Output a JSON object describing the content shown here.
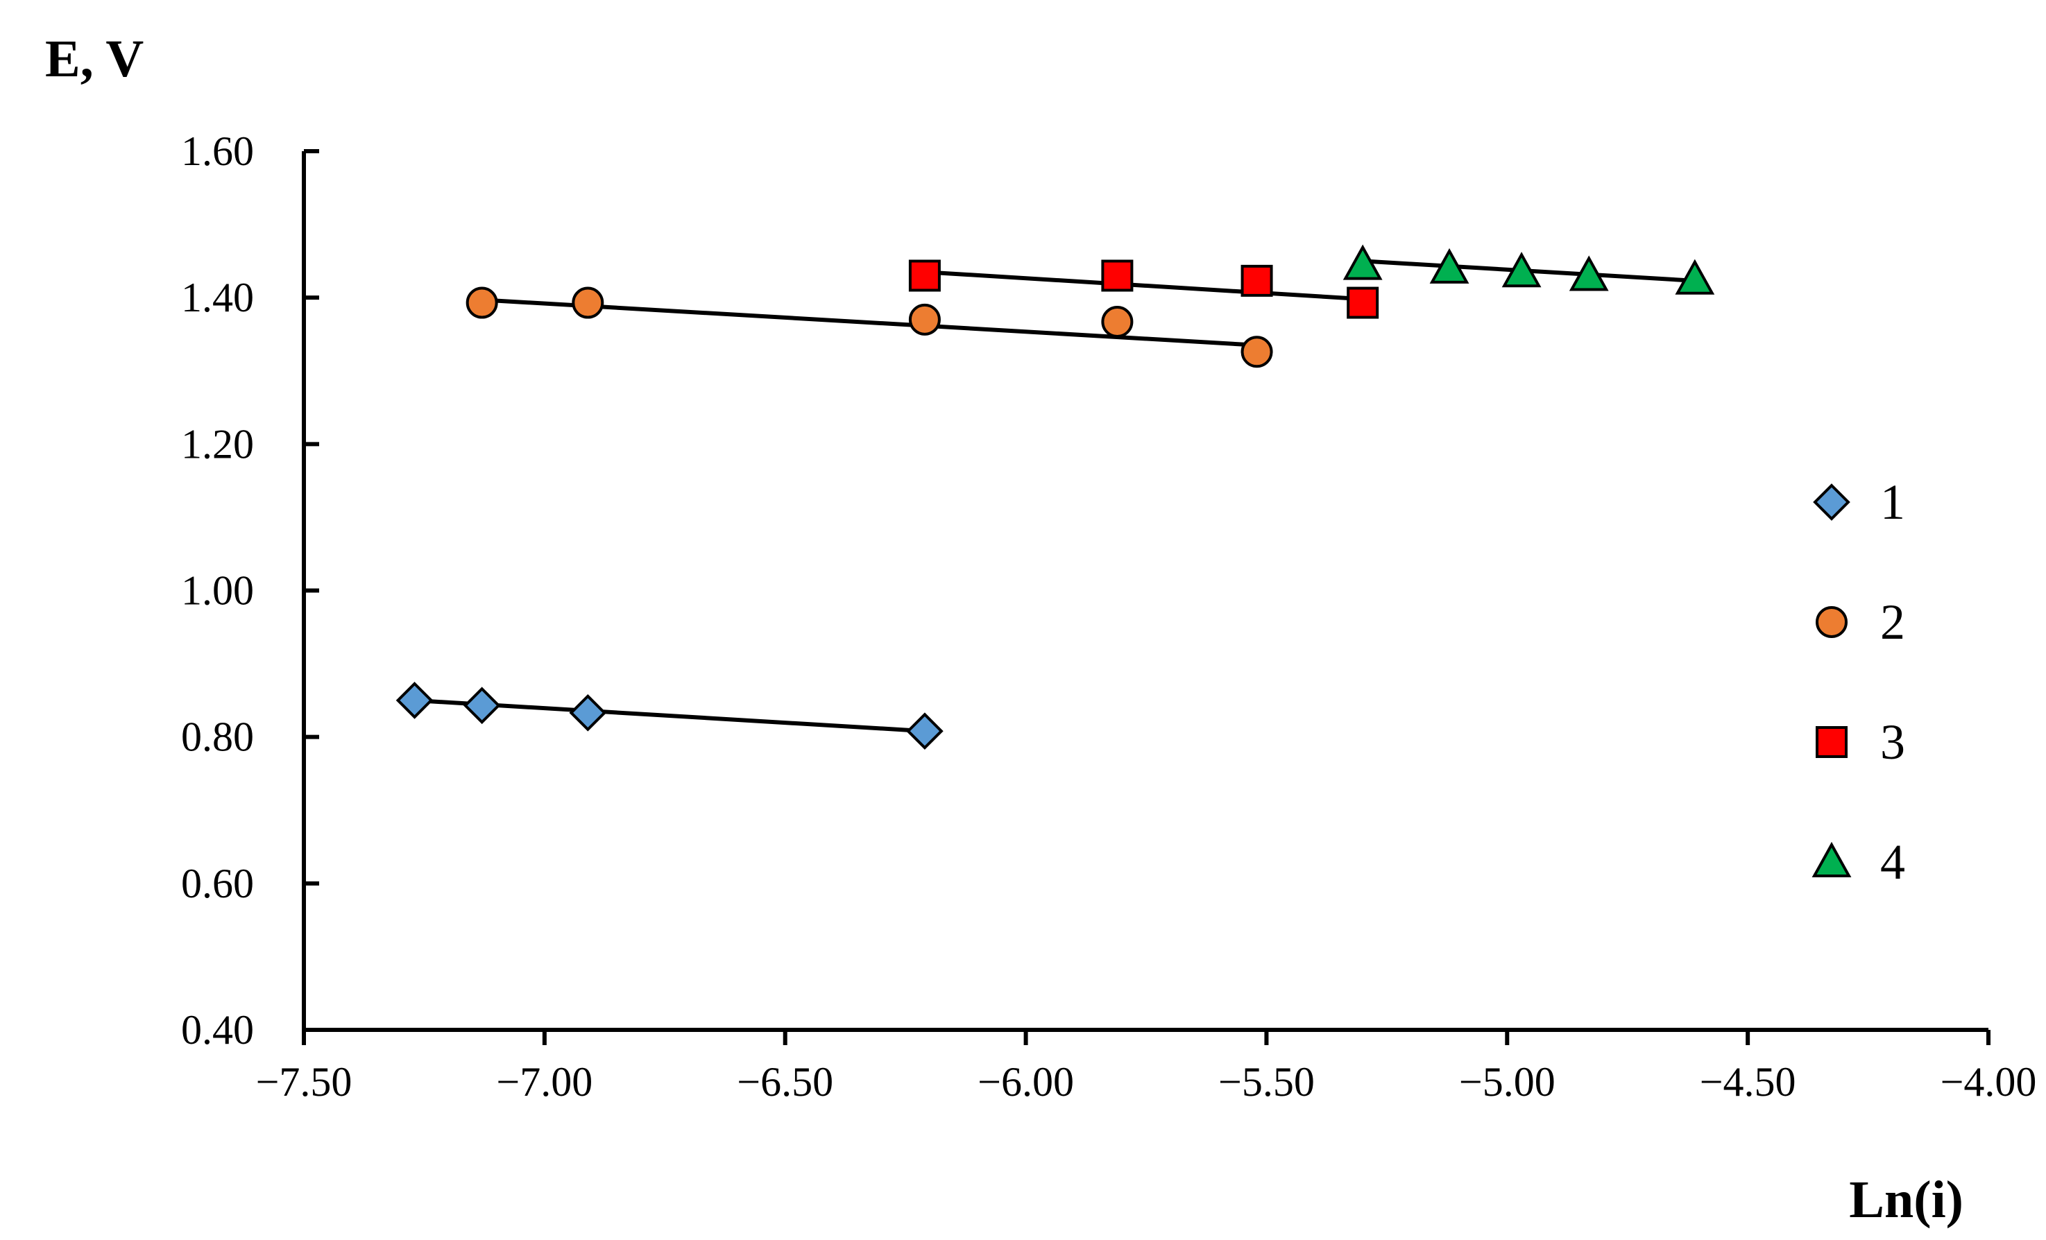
{
  "chart_data": {
    "type": "scatter",
    "xlabel": "Ln(i)",
    "ylabel": "E, V",
    "xlim": [
      -7.5,
      -4.0
    ],
    "ylim": [
      0.4,
      1.6
    ],
    "x_ticks": [
      -7.5,
      -7.0,
      -6.5,
      -6.0,
      -5.5,
      -5.0,
      -4.5,
      -4.0
    ],
    "x_tick_labels": [
      "−7.50",
      "−7.00",
      "−6.50",
      "−6.00",
      "−5.50",
      "−5.00",
      "−4.50",
      "−4.00"
    ],
    "y_ticks": [
      0.4,
      0.6,
      0.8,
      1.0,
      1.2,
      1.4,
      1.6
    ],
    "y_tick_labels": [
      "0.40",
      "0.60",
      "0.80",
      "1.00",
      "1.20",
      "1.40",
      "1.60"
    ],
    "grid": false,
    "legend_position": "right",
    "series": [
      {
        "name": "1",
        "marker": "diamond",
        "color": "#5B9BD5",
        "x": [
          -7.27,
          -7.13,
          -6.91,
          -6.21
        ],
        "y": [
          0.85,
          0.843,
          0.833,
          0.808
        ],
        "trendline": [
          [
            -7.27,
            0.85
          ],
          [
            -6.21,
            0.808
          ]
        ]
      },
      {
        "name": "2",
        "marker": "circle",
        "color": "#ED7D31",
        "x": [
          -7.13,
          -6.91,
          -6.21,
          -5.81,
          -5.52
        ],
        "y": [
          1.393,
          1.393,
          1.37,
          1.367,
          1.326
        ],
        "trendline": [
          [
            -7.13,
            1.397
          ],
          [
            -5.52,
            1.335
          ]
        ]
      },
      {
        "name": "3",
        "marker": "square",
        "color": "#FF0000",
        "x": [
          -6.21,
          -5.81,
          -5.52,
          -5.3
        ],
        "y": [
          1.43,
          1.43,
          1.423,
          1.393
        ],
        "trendline": [
          [
            -6.21,
            1.435
          ],
          [
            -5.3,
            1.398
          ]
        ]
      },
      {
        "name": "4",
        "marker": "triangle",
        "color": "#00B050",
        "x": [
          -5.3,
          -5.12,
          -4.97,
          -4.83,
          -4.61
        ],
        "y": [
          1.445,
          1.44,
          1.435,
          1.43,
          1.425
        ],
        "trendline": [
          [
            -5.3,
            1.45
          ],
          [
            -4.61,
            1.423
          ]
        ]
      }
    ]
  }
}
